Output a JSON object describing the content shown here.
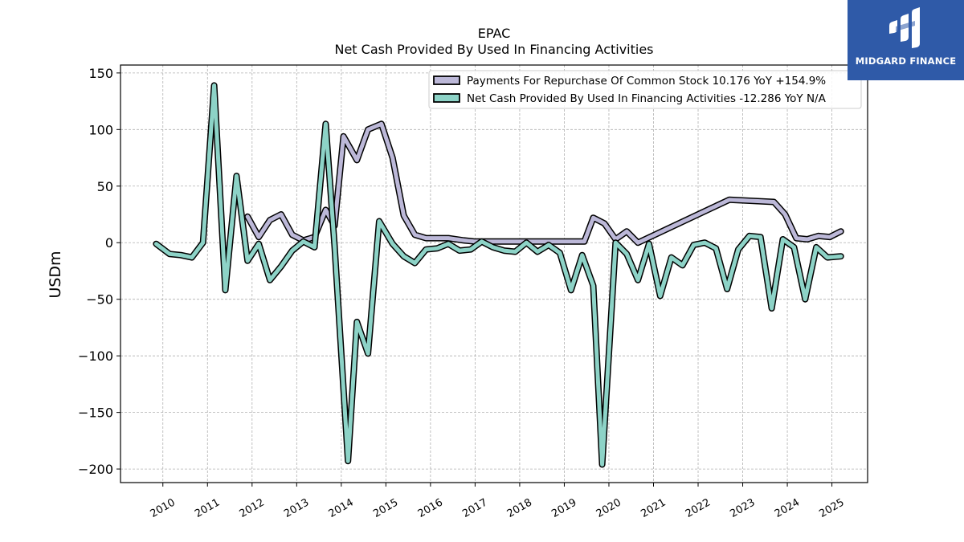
{
  "logo": {
    "text": "MIDGARD FINANCE",
    "bg_color": "#2f5aa8"
  },
  "chart_data": {
    "type": "line",
    "title": "EPAC",
    "subtitle": "Net Cash Provided By Used In Financing Activities",
    "ylabel": "USDm",
    "xlabel": "",
    "ylim": [
      -212,
      157
    ],
    "xlim": [
      2009.05,
      2025.8
    ],
    "yticks": [
      150,
      100,
      50,
      0,
      -50,
      -100,
      -150,
      -200
    ],
    "ytick_labels": [
      "150",
      "100",
      "50",
      "0",
      "−50",
      "−100",
      "−150",
      "−200"
    ],
    "xticks": [
      2010,
      2011,
      2012,
      2013,
      2014,
      2015,
      2016,
      2017,
      2018,
      2019,
      2020,
      2021,
      2022,
      2023,
      2024,
      2025
    ],
    "xtick_labels": [
      "2010",
      "2011",
      "2012",
      "2013",
      "2014",
      "2015",
      "2016",
      "2017",
      "2018",
      "2019",
      "2020",
      "2021",
      "2022",
      "2023",
      "2024",
      "2025"
    ],
    "grid": true,
    "legend_position": "top-right",
    "legend_labels": [
      "Payments For Repurchase Of Common Stock  10.176 YoY +154.9%",
      "Net Cash Provided By Used In Financing Activities  -12.286 YoY N/A"
    ],
    "series": [
      {
        "name": "Payments For Repurchase Of Common Stock",
        "color": "#bcb8d8",
        "points": [
          [
            2011.9,
            23
          ],
          [
            2012.15,
            5
          ],
          [
            2012.4,
            20
          ],
          [
            2012.65,
            25
          ],
          [
            2012.9,
            7
          ],
          [
            2013.15,
            2
          ],
          [
            2013.4,
            5
          ],
          [
            2013.65,
            29
          ],
          [
            2013.85,
            15
          ],
          [
            2014.05,
            94
          ],
          [
            2014.35,
            73
          ],
          [
            2014.6,
            100
          ],
          [
            2014.9,
            105
          ],
          [
            2015.15,
            75
          ],
          [
            2015.4,
            24
          ],
          [
            2015.65,
            7
          ],
          [
            2015.9,
            4
          ],
          [
            2016.4,
            4
          ],
          [
            2016.75,
            2
          ],
          [
            2017.0,
            1
          ],
          [
            2019.45,
            1
          ],
          [
            2019.65,
            22
          ],
          [
            2019.9,
            17
          ],
          [
            2020.15,
            3
          ],
          [
            2020.4,
            10
          ],
          [
            2020.65,
            0
          ],
          [
            2022.7,
            38
          ],
          [
            2023.7,
            36
          ],
          [
            2023.95,
            25
          ],
          [
            2024.2,
            4
          ],
          [
            2024.45,
            3
          ],
          [
            2024.7,
            6
          ],
          [
            2024.95,
            5
          ],
          [
            2025.2,
            10
          ]
        ]
      },
      {
        "name": "Net Cash Provided By Used In Financing Activities",
        "color": "#8dd3c7",
        "points": [
          [
            2009.85,
            -1
          ],
          [
            2010.15,
            -10
          ],
          [
            2010.4,
            -11
          ],
          [
            2010.65,
            -13
          ],
          [
            2010.9,
            0
          ],
          [
            2011.15,
            139
          ],
          [
            2011.4,
            -42
          ],
          [
            2011.65,
            59
          ],
          [
            2011.9,
            -16
          ],
          [
            2012.15,
            -1
          ],
          [
            2012.4,
            -33
          ],
          [
            2012.65,
            -21
          ],
          [
            2012.9,
            -7
          ],
          [
            2013.15,
            1
          ],
          [
            2013.4,
            -4
          ],
          [
            2013.65,
            105
          ],
          [
            2013.85,
            -3
          ],
          [
            2014.15,
            -193
          ],
          [
            2014.35,
            -70
          ],
          [
            2014.6,
            -98
          ],
          [
            2014.85,
            19
          ],
          [
            2015.15,
            -1
          ],
          [
            2015.4,
            -12
          ],
          [
            2015.65,
            -18
          ],
          [
            2015.9,
            -6
          ],
          [
            2016.15,
            -5
          ],
          [
            2016.4,
            -1
          ],
          [
            2016.65,
            -7
          ],
          [
            2016.9,
            -6
          ],
          [
            2017.15,
            1
          ],
          [
            2017.4,
            -4
          ],
          [
            2017.65,
            -7
          ],
          [
            2017.9,
            -8
          ],
          [
            2018.15,
            0
          ],
          [
            2018.4,
            -8
          ],
          [
            2018.65,
            -2
          ],
          [
            2018.9,
            -9
          ],
          [
            2019.15,
            -42
          ],
          [
            2019.4,
            -11
          ],
          [
            2019.65,
            -38
          ],
          [
            2019.85,
            -196
          ],
          [
            2020.15,
            0
          ],
          [
            2020.4,
            -10
          ],
          [
            2020.65,
            -33
          ],
          [
            2020.9,
            -1
          ],
          [
            2021.15,
            -47
          ],
          [
            2021.4,
            -13
          ],
          [
            2021.65,
            -20
          ],
          [
            2021.9,
            -2
          ],
          [
            2022.15,
            0
          ],
          [
            2022.4,
            -5
          ],
          [
            2022.65,
            -41
          ],
          [
            2022.9,
            -6
          ],
          [
            2023.15,
            6
          ],
          [
            2023.4,
            5
          ],
          [
            2023.65,
            -58
          ],
          [
            2023.9,
            3
          ],
          [
            2024.15,
            -4
          ],
          [
            2024.4,
            -50
          ],
          [
            2024.65,
            -4
          ],
          [
            2024.9,
            -13
          ],
          [
            2025.2,
            -12
          ]
        ]
      }
    ]
  }
}
